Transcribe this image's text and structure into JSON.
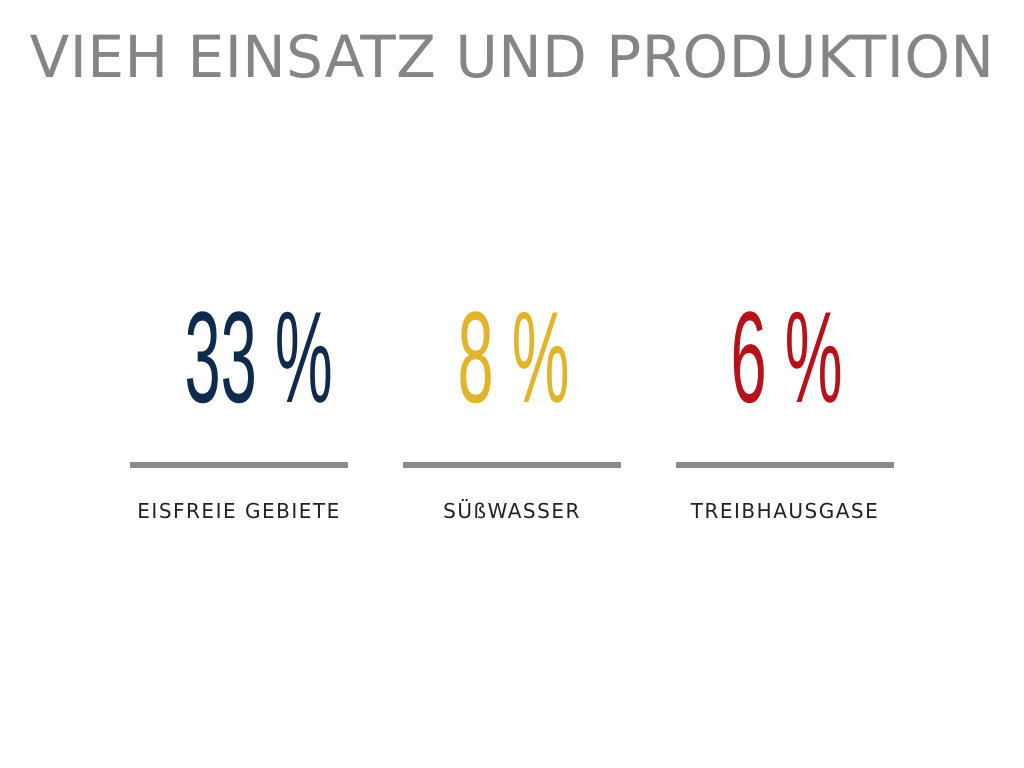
{
  "title": "VIEH EINSATZ UND PRODUKTION",
  "colors": {
    "title": "#858585",
    "bar": "#8b8b8b",
    "navy": "#0f2a4a",
    "gold": "#e2b42b",
    "red": "#b5121b"
  },
  "stats": [
    {
      "value": "33 %",
      "label": "EISFREIE GEBIETE",
      "color": "#0f2a4a"
    },
    {
      "value": "8 %",
      "label": "SÜßWASSER",
      "color": "#e2b42b"
    },
    {
      "value": "6 %",
      "label": "TREIBHAUSGASE",
      "color": "#b5121b"
    }
  ]
}
